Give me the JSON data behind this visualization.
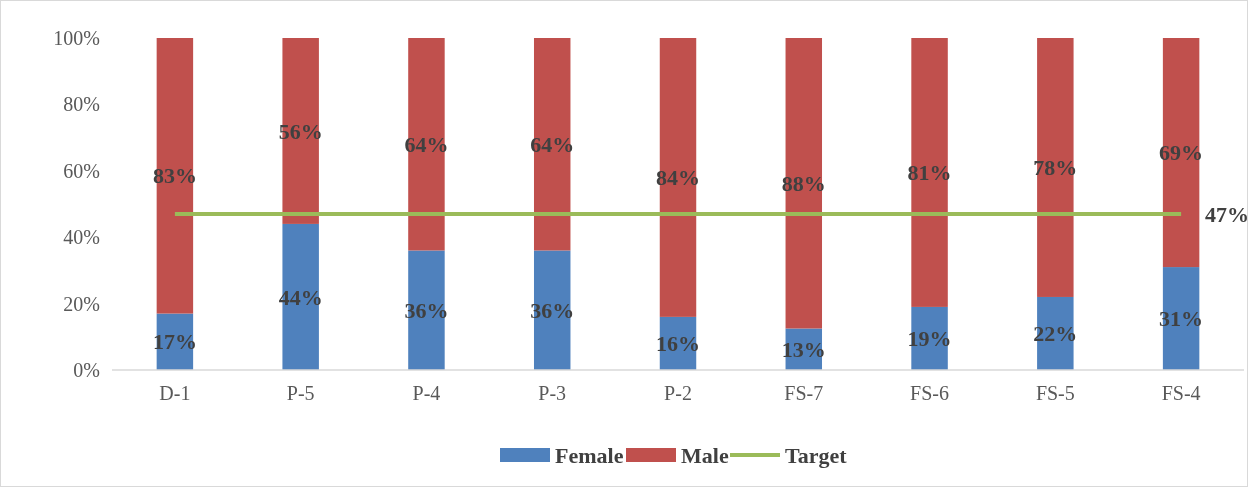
{
  "chart_data": {
    "type": "bar",
    "stacked": true,
    "categories": [
      "D-1",
      "P-5",
      "P-4",
      "P-3",
      "P-2",
      "FS-7",
      "FS-6",
      "FS-5",
      "FS-4"
    ],
    "ylim": [
      0,
      100
    ],
    "yticks": [
      {
        "value": 0,
        "label": "0%"
      },
      {
        "value": 20,
        "label": "20%"
      },
      {
        "value": 40,
        "label": "40%"
      },
      {
        "value": 60,
        "label": "60%"
      },
      {
        "value": 80,
        "label": "80%"
      },
      {
        "value": 100,
        "label": "100%"
      }
    ],
    "legend": "bottom",
    "series": [
      {
        "name": "Female",
        "color": "#4f81bd",
        "values": [
          17,
          44,
          36,
          36,
          16,
          12.5,
          19,
          22,
          31
        ],
        "value_labels": [
          "17%",
          "44%",
          "36%",
          "36%",
          "16%",
          "13%",
          "19%",
          "22%",
          "31%"
        ]
      },
      {
        "name": "Male",
        "color": "#c0504d",
        "values": [
          83,
          56,
          64,
          64,
          84,
          87.5,
          81,
          78,
          69
        ],
        "value_labels": [
          "83%",
          "56%",
          "64%",
          "64%",
          "84%",
          "88%",
          "81%",
          "78%",
          "69%"
        ]
      },
      {
        "name": "Target",
        "type": "line",
        "color": "#9bbb59",
        "values": [
          47,
          47,
          47,
          47,
          47,
          47,
          47,
          47,
          47
        ],
        "value_labels": [
          null,
          null,
          null,
          null,
          null,
          null,
          null,
          null,
          "47%"
        ]
      }
    ]
  }
}
